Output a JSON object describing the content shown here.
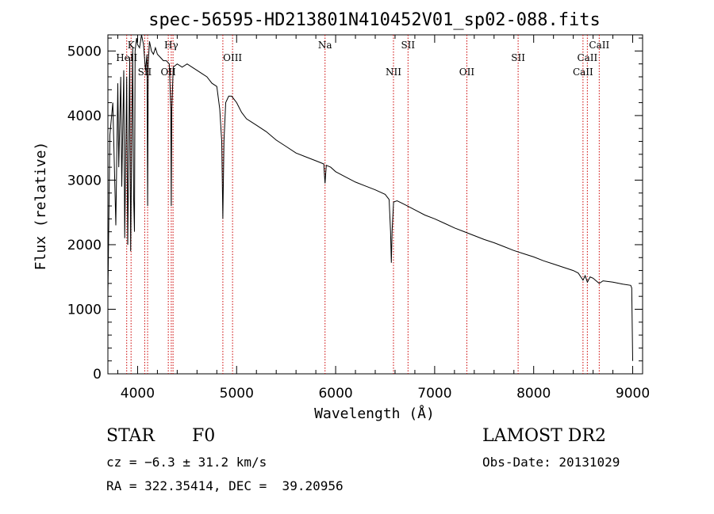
{
  "chart_data": {
    "type": "line",
    "title": "spec-56595-HD213801N410452V01_sp02-088.fits",
    "xlabel": "Wavelength (Å)",
    "ylabel": "Flux (relative)",
    "xlim": [
      3700,
      9100
    ],
    "ylim": [
      0,
      5250
    ],
    "x_ticks": [
      4000,
      5000,
      6000,
      7000,
      8000,
      9000
    ],
    "y_ticks": [
      0,
      1000,
      2000,
      3000,
      4000,
      5000
    ],
    "grid": false,
    "series": [
      {
        "x": [
          3700,
          3720,
          3750,
          3780,
          3800,
          3810,
          3830,
          3840,
          3860,
          3870,
          3890,
          3900,
          3920,
          3930,
          3950,
          3960,
          3968,
          3975,
          3990,
          4000,
          4020,
          4040,
          4060,
          4080,
          4095,
          4101,
          4108,
          4120,
          4140,
          4160,
          4180,
          4200,
          4230,
          4260,
          4290,
          4320,
          4335,
          4340,
          4345,
          4360,
          4400,
          4450,
          4500,
          4550,
          4600,
          4650,
          4700,
          4750,
          4800,
          4830,
          4850,
          4861,
          4872,
          4890,
          4920,
          4950,
          5000,
          5050,
          5100,
          5150,
          5200,
          5300,
          5400,
          5500,
          5600,
          5700,
          5800,
          5880,
          5893,
          5906,
          5950,
          6000,
          6100,
          6200,
          6300,
          6400,
          6500,
          6540,
          6555,
          6563,
          6570,
          6585,
          6620,
          6700,
          6800,
          6900,
          7000,
          7100,
          7200,
          7300,
          7400,
          7500,
          7600,
          7700,
          7800,
          7900,
          8000,
          8100,
          8200,
          8300,
          8400,
          8450,
          8498,
          8520,
          8542,
          8570,
          8600,
          8662,
          8700,
          8800,
          8900,
          8980,
          8990,
          9000
        ],
        "y": [
          1200,
          3700,
          4200,
          2300,
          4500,
          3200,
          4600,
          2900,
          4700,
          2100,
          4600,
          2000,
          4900,
          1900,
          5050,
          2700,
          2200,
          5000,
          5200,
          5100,
          5050,
          5250,
          5100,
          4700,
          4950,
          2600,
          4800,
          5150,
          5000,
          4950,
          5050,
          4950,
          4900,
          4850,
          4850,
          4800,
          4100,
          2600,
          4100,
          4750,
          4800,
          4750,
          4800,
          4750,
          4700,
          4650,
          4600,
          4500,
          4450,
          4100,
          3600,
          2400,
          3600,
          4200,
          4300,
          4300,
          4200,
          4050,
          3950,
          3900,
          3850,
          3750,
          3620,
          3520,
          3420,
          3360,
          3300,
          3250,
          2950,
          3230,
          3200,
          3130,
          3050,
          2970,
          2910,
          2850,
          2780,
          2700,
          2200,
          1720,
          2200,
          2660,
          2680,
          2620,
          2540,
          2460,
          2400,
          2330,
          2260,
          2200,
          2140,
          2080,
          2030,
          1970,
          1910,
          1860,
          1810,
          1750,
          1700,
          1650,
          1600,
          1560,
          1450,
          1520,
          1420,
          1500,
          1480,
          1400,
          1440,
          1420,
          1390,
          1370,
          1330,
          200
        ]
      }
    ],
    "lines": [
      {
        "label": "K",
        "x": 3934,
        "row": 1
      },
      {
        "label": "HeII",
        "x": 3890,
        "row": 2
      },
      {
        "label": "SII",
        "x": 4072,
        "row": 3
      },
      {
        "label": "Hγ",
        "x": 4340,
        "row": 1
      },
      {
        "label": "OII",
        "x": 4310,
        "row": 3
      },
      {
        "label": "OIII",
        "x": 4959,
        "row": 2
      },
      {
        "label": "Na",
        "x": 5893,
        "row": 1
      },
      {
        "label": "NII",
        "x": 6584,
        "row": 3
      },
      {
        "label": "SII",
        "x": 6731,
        "row": 1
      },
      {
        "label": "OII",
        "x": 7325,
        "row": 3
      },
      {
        "label": "SII",
        "x": 7843,
        "row": 2
      },
      {
        "label": "CaII",
        "x": 8542,
        "row": 2
      },
      {
        "label": "CaII",
        "x": 8498,
        "row": 3
      },
      {
        "label": "CaII",
        "x": 8662,
        "row": 1
      },
      {
        "label": "",
        "x": 4101,
        "row": 0
      },
      {
        "label": "",
        "x": 4358,
        "row": 0
      },
      {
        "label": "",
        "x": 4861,
        "row": 0
      }
    ]
  },
  "info": {
    "class": "STAR",
    "subclass": "F0",
    "survey": "LAMOST DR2",
    "cz": "cz = −6.3 ± 31.2 km/s",
    "obs_date": "Obs-Date: 20131029",
    "coords": "RA = 322.35414, DEC =  39.20956"
  },
  "colors": {
    "spectrum": "#000000",
    "line_markers": "#cc0000",
    "axes": "#000000"
  }
}
